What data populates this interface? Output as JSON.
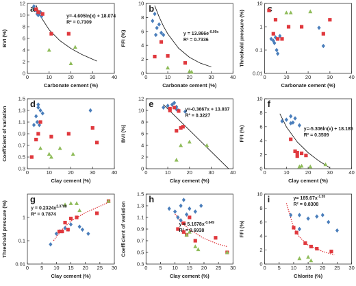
{
  "chart_data": [
    {
      "type": "scatter",
      "panel": "a",
      "xlabel": "Carbonate cement (%)",
      "ylabel": "BVI (%)",
      "xlim": [
        0,
        40
      ],
      "xticks": [
        0,
        10,
        20,
        30,
        40
      ],
      "ylim": [
        0,
        12
      ],
      "yticks": [
        0,
        2,
        4,
        6,
        8,
        10,
        12
      ],
      "log_y": false,
      "annotations": [
        {
          "text": "y=-4.605ln(x) + 18.074"
        },
        {
          "text": "R² = 0.7309"
        }
      ],
      "series": [
        {
          "color": "#4a7ebb",
          "marker": "diamond",
          "x": [
            3,
            4,
            4.5,
            5,
            6,
            6.5
          ],
          "values": [
            11.5,
            10.8,
            10.2,
            10,
            10.5,
            9.8
          ]
        },
        {
          "color": "#e0393e",
          "marker": "square",
          "x": [
            4,
            5,
            7,
            11,
            19
          ],
          "values": [
            11,
            10.5,
            10.2,
            6.8,
            6.8
          ]
        },
        {
          "color": "#8fbc5a",
          "marker": "triangle",
          "x": [
            10,
            20,
            22
          ],
          "values": [
            4,
            1.7,
            4.5
          ]
        }
      ],
      "fit": {
        "color": "#222",
        "dashed": false,
        "x": [
          4,
          6,
          10,
          15,
          20,
          25,
          32
        ],
        "values": [
          11.69,
          9.82,
          7.47,
          5.6,
          4.28,
          3.25,
          2.11
        ]
      }
    },
    {
      "type": "scatter",
      "panel": "b",
      "xlabel": "Carbonate cement (%)",
      "ylabel": "FFI (%)",
      "xlim": [
        0,
        40
      ],
      "xticks": [
        0,
        10,
        20,
        30,
        40
      ],
      "ylim": [
        0,
        10
      ],
      "yticks": [
        0,
        2,
        4,
        6,
        8,
        10
      ],
      "log_y": false,
      "annotations": [
        {
          "text": "y = 13.866e",
          "sup": "-0.09x"
        },
        {
          "text": "R² = 0.7336"
        }
      ],
      "series": [
        {
          "color": "#4a7ebb",
          "marker": "diamond",
          "x": [
            3,
            4,
            4.5,
            5,
            6,
            7,
            8
          ],
          "values": [
            7.5,
            8.5,
            5.5,
            6.5,
            7,
            5.8,
            5.5
          ]
        },
        {
          "color": "#e0393e",
          "marker": "square",
          "x": [
            4,
            7,
            10,
            18
          ],
          "values": [
            2.4,
            4.5,
            2.5,
            1.5
          ]
        },
        {
          "color": "#8fbc5a",
          "marker": "triangle",
          "x": [
            10,
            20,
            21
          ],
          "values": [
            0.8,
            0.3,
            0.2
          ]
        }
      ],
      "fit": {
        "color": "#222",
        "dashed": false,
        "x": [
          4,
          6,
          8,
          10,
          15,
          20,
          25,
          30
        ],
        "values": [
          9.68,
          8.08,
          6.75,
          5.64,
          3.59,
          2.29,
          1.46,
          0.93
        ]
      }
    },
    {
      "type": "scatter",
      "panel": "c",
      "xlabel": "Carbonate cement (%)",
      "ylabel": "Threshold pressure (%)",
      "xlim": [
        0,
        40
      ],
      "xticks": [
        0,
        10,
        20,
        30,
        40
      ],
      "ylim": [
        0.01,
        10
      ],
      "yticks": [
        0.01,
        0.1,
        1,
        10
      ],
      "log_y": true,
      "annotations": [],
      "series": [
        {
          "color": "#4a7ebb",
          "marker": "diamond",
          "x": [
            3,
            4,
            4.5,
            5,
            5.5,
            6,
            7,
            25,
            27
          ],
          "values": [
            0.3,
            0.25,
            0.2,
            0.35,
            0.1,
            0.07,
            0.4,
            0.9,
            0.15
          ]
        },
        {
          "color": "#e0393e",
          "marker": "square",
          "x": [
            2,
            4,
            5,
            6,
            8,
            11,
            17,
            27,
            30
          ],
          "values": [
            5,
            0.5,
            2,
            0.3,
            0.3,
            1,
            1,
            0.5,
            2
          ]
        },
        {
          "color": "#8fbc5a",
          "marker": "triangle",
          "x": [
            10,
            12,
            21
          ],
          "values": [
            4,
            4,
            4.5
          ]
        }
      ]
    },
    {
      "type": "scatter",
      "panel": "d",
      "xlabel": "Clay cement (%)",
      "ylabel": "Coefficient of variation",
      "xlim": [
        0,
        40
      ],
      "xticks": [
        0,
        10,
        20,
        30,
        40
      ],
      "ylim": [
        0.3,
        1.5
      ],
      "yticks": [
        0.3,
        0.5,
        0.7,
        0.9,
        1.1,
        1.3,
        1.5
      ],
      "log_y": false,
      "annotations": [],
      "series": [
        {
          "color": "#4a7ebb",
          "marker": "diamond",
          "x": [
            3,
            4,
            4.5,
            5,
            5.5,
            6,
            7,
            5,
            29
          ],
          "values": [
            1.05,
            1.2,
            1.1,
            1.35,
            1.05,
            1.3,
            1.25,
            1.4,
            1.3
          ]
        },
        {
          "color": "#e0393e",
          "marker": "square",
          "x": [
            2,
            4,
            5,
            6,
            11,
            19,
            30,
            32
          ],
          "values": [
            0.5,
            0.8,
            0.9,
            1.1,
            0.85,
            0.9,
            1.0,
            0.75
          ]
        },
        {
          "color": "#8fbc5a",
          "marker": "triangle",
          "x": [
            6,
            10,
            11,
            15,
            21
          ],
          "values": [
            0.65,
            0.55,
            0.5,
            0.65,
            0.55
          ]
        }
      ]
    },
    {
      "type": "scatter",
      "panel": "e",
      "xlabel": "Clay cement (%)",
      "ylabel": "BVI (%)",
      "xlim": [
        0,
        40
      ],
      "xticks": [
        0,
        10,
        20,
        30,
        40
      ],
      "ylim": [
        0,
        12
      ],
      "yticks": [
        0,
        2,
        4,
        6,
        8,
        10,
        12
      ],
      "log_y": false,
      "annotations": [
        {
          "text": "y=-0.3667x + 13.937"
        },
        {
          "text": "R² = 0.3227"
        }
      ],
      "series": [
        {
          "color": "#4a7ebb",
          "marker": "diamond",
          "x": [
            8,
            10,
            12,
            13,
            14,
            15,
            18,
            14
          ],
          "values": [
            10.5,
            10.8,
            11,
            11.3,
            10.6,
            10,
            9.8,
            10.2
          ]
        },
        {
          "color": "#e0393e",
          "marker": "square",
          "x": [
            11,
            13,
            15,
            14,
            16,
            17,
            11
          ],
          "values": [
            10.3,
            10.5,
            9.9,
            6.5,
            7,
            7.2,
            10
          ]
        },
        {
          "color": "#8fbc5a",
          "marker": "triangle",
          "x": [
            14,
            16,
            20,
            28
          ],
          "values": [
            1.5,
            4,
            4.6,
            4
          ]
        }
      ],
      "fit": {
        "color": "#222",
        "dashed": false,
        "x": [
          8,
          38
        ],
        "values": [
          11,
          0
        ]
      }
    },
    {
      "type": "scatter",
      "panel": "f",
      "xlabel": "Clay cement (%)",
      "ylabel": "FFI (%)",
      "xlim": [
        0,
        40
      ],
      "xticks": [
        0,
        10,
        20,
        30,
        40
      ],
      "ylim": [
        0,
        10
      ],
      "yticks": [
        0,
        2,
        4,
        6,
        8,
        10
      ],
      "log_y": false,
      "annotations": [
        {
          "text": "y=-5.306ln(x) + 18.185"
        },
        {
          "text": "R² = 0.3509"
        }
      ],
      "series": [
        {
          "color": "#4a7ebb",
          "marker": "diamond",
          "x": [
            8,
            10,
            12,
            14,
            13,
            16,
            12
          ],
          "values": [
            6.8,
            7,
            7.5,
            7.2,
            6.6,
            6.2,
            6.5
          ]
        },
        {
          "color": "#e0393e",
          "marker": "square",
          "x": [
            12,
            14,
            15,
            17,
            15,
            19
          ],
          "values": [
            4.2,
            2.5,
            2.3,
            2.2,
            1.8,
            1.9
          ]
        },
        {
          "color": "#8fbc5a",
          "marker": "triangle",
          "x": [
            16,
            17,
            21,
            28
          ],
          "values": [
            0.3,
            0.4,
            0.3,
            0.6
          ]
        }
      ],
      "fit": {
        "color": "#222",
        "dashed": false,
        "x": [
          7,
          10,
          15,
          20,
          25,
          30
        ],
        "values": [
          7.86,
          5.97,
          3.82,
          2.29,
          1.1,
          0.14
        ]
      }
    },
    {
      "type": "scatter",
      "panel": "g",
      "xlabel": "Clay cement (%)",
      "ylabel": "Threshold pressure (%)",
      "xlim": [
        0,
        30
      ],
      "xticks": [
        0,
        5,
        10,
        15,
        20,
        25,
        30
      ],
      "ylim": [
        0.01,
        10
      ],
      "yticks": [
        0.01,
        0.1,
        1
      ],
      "log_y": true,
      "annotations": [
        {
          "text": "y = 0.2324x",
          "sup": "2.3788"
        },
        {
          "text": "R² = 0.7874"
        }
      ],
      "series": [
        {
          "color": "#4a7ebb",
          "marker": "diamond",
          "x": [
            8,
            10,
            11,
            12,
            13,
            14,
            15,
            18,
            19,
            21
          ],
          "values": [
            0.07,
            0.2,
            0.25,
            0.25,
            0.35,
            0.3,
            0.5,
            0.4,
            0.3,
            0.2
          ]
        },
        {
          "color": "#e0393e",
          "marker": "square",
          "x": [
            11,
            12,
            13,
            14,
            15,
            17,
            24,
            28
          ],
          "values": [
            0.25,
            0.25,
            0.6,
            0.3,
            0.9,
            1,
            1.5,
            5
          ]
        },
        {
          "color": "#8fbc5a",
          "marker": "triangle",
          "x": [
            13,
            15,
            17,
            18,
            28
          ],
          "values": [
            3.5,
            4,
            4,
            2,
            5
          ]
        }
      ],
      "fit": {
        "color": "#e0393e",
        "dashed": true,
        "x": [
          9,
          12,
          15,
          20,
          25,
          28
        ],
        "values": [
          0.1,
          0.3,
          0.7,
          1.6,
          3,
          4.5
        ]
      }
    },
    {
      "type": "scatter",
      "panel": "h",
      "xlabel": "Clay cement (%)",
      "ylabel": "Coefficient of variation",
      "xlim": [
        0,
        30
      ],
      "xticks": [
        0,
        5,
        10,
        15,
        20,
        25,
        30
      ],
      "ylim": [
        0.3,
        1.5
      ],
      "yticks": [
        0.3,
        0.5,
        0.7,
        0.9,
        1.1,
        1.3,
        1.5
      ],
      "log_y": false,
      "annotations": [
        {
          "text": "y = 5.1678x",
          "sup": "-0.649"
        },
        {
          "text": "R² = 0.6938"
        }
      ],
      "series": [
        {
          "color": "#4a7ebb",
          "marker": "diamond",
          "x": [
            8,
            10,
            11,
            12,
            13,
            14,
            15,
            17,
            19,
            12
          ],
          "values": [
            1.25,
            1.2,
            1.1,
            1.3,
            1.4,
            1.15,
            1.25,
            1.2,
            1.3,
            1.05
          ]
        },
        {
          "color": "#e0393e",
          "marker": "square",
          "x": [
            11,
            13,
            13,
            14,
            15,
            17,
            24,
            28
          ],
          "values": [
            0.9,
            1.0,
            0.85,
            0.8,
            1.1,
            0.7,
            0.75,
            0.5
          ]
        },
        {
          "color": "#8fbc5a",
          "marker": "triangle",
          "x": [
            14,
            15,
            17,
            18,
            28
          ],
          "values": [
            0.8,
            0.85,
            0.6,
            0.55,
            0.5
          ]
        }
      ],
      "fit": {
        "color": "#e0393e",
        "dashed": true,
        "x": [
          10,
          12,
          15,
          20,
          25,
          28
        ],
        "values": [
          1.16,
          1.03,
          0.89,
          0.74,
          0.64,
          0.6
        ]
      }
    },
    {
      "type": "scatter",
      "panel": "i",
      "xlabel": "Chlorite (%)",
      "ylabel": "FFI (%)",
      "xlim": [
        0,
        30
      ],
      "xticks": [
        0,
        5,
        10,
        15,
        20,
        25,
        30
      ],
      "ylim": [
        0,
        10
      ],
      "yticks": [
        0,
        2,
        4,
        6,
        8,
        10
      ],
      "log_y": false,
      "annotations": [
        {
          "text": "y= 185.67x",
          "sup": "-1.55"
        },
        {
          "text": "R² = 0.8308"
        }
      ],
      "annotation_color": "#777",
      "series": [
        {
          "color": "#4a7ebb",
          "marker": "diamond",
          "x": [
            9,
            12,
            12,
            15,
            18,
            20,
            22,
            25
          ],
          "values": [
            7,
            7,
            5,
            6.5,
            6.8,
            7,
            6,
            4.8
          ]
        },
        {
          "color": "#e0393e",
          "marker": "square",
          "x": [
            10,
            11,
            14,
            16,
            18,
            23
          ],
          "values": [
            5.2,
            4.5,
            3,
            2.5,
            2.2,
            1.8
          ]
        },
        {
          "color": "#8fbc5a",
          "marker": "triangle",
          "x": [
            12,
            15,
            16
          ],
          "values": [
            0.8,
            1,
            0.5
          ]
        }
      ],
      "fit": {
        "color": "#e0393e",
        "dashed": true,
        "x": [
          7.5,
          9,
          10,
          12,
          15,
          20,
          24
        ],
        "values": [
          8.7,
          6.6,
          5.24,
          3.86,
          2.7,
          1.8,
          1.3
        ]
      }
    }
  ]
}
